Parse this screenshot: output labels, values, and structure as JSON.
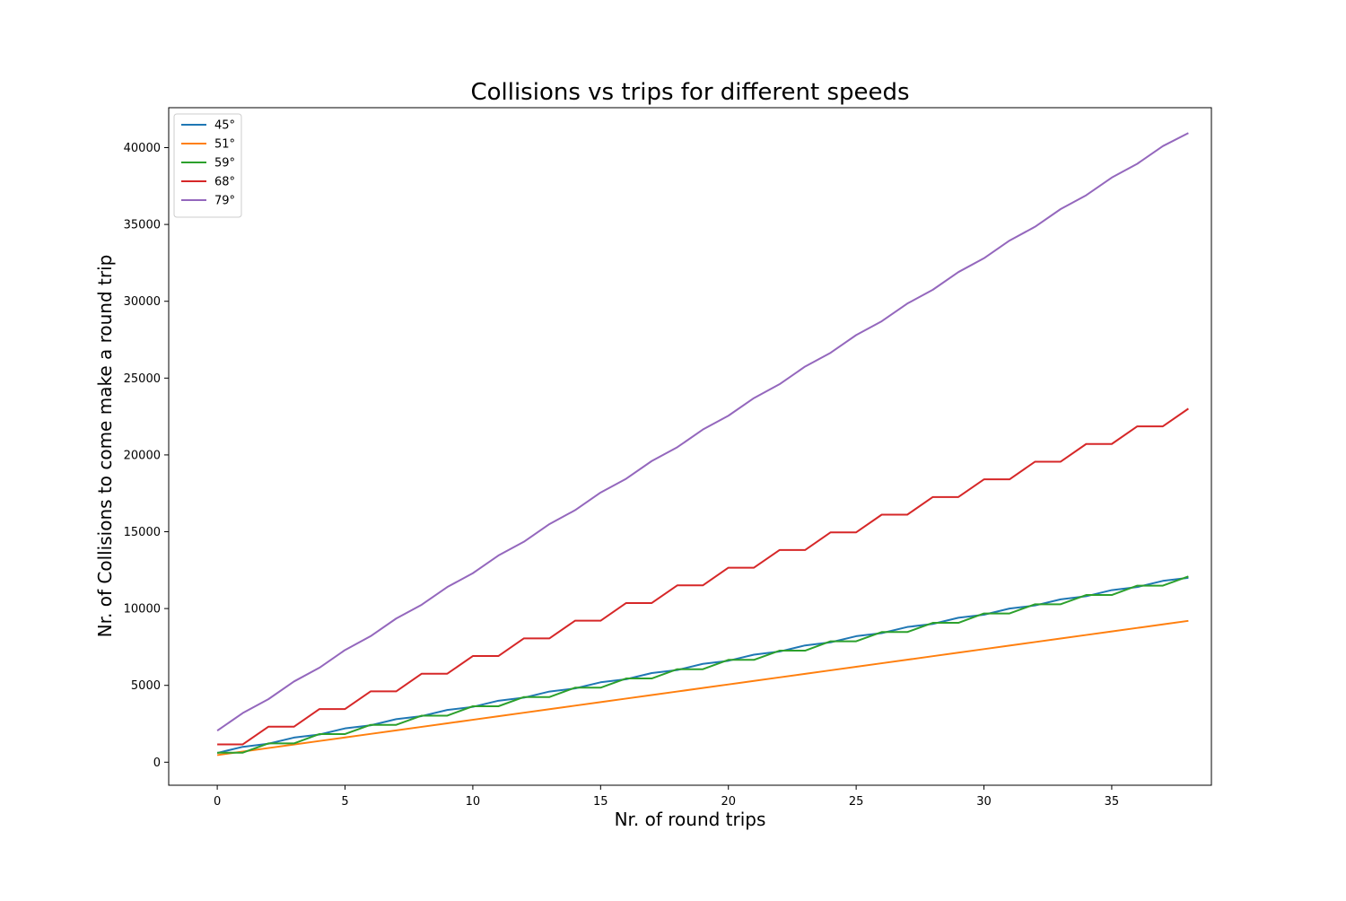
{
  "chart_data": {
    "type": "line",
    "title": "Collisions vs trips for different speeds",
    "xlabel": "Nr. of round trips",
    "ylabel": "Nr. of Collisions to come make a round trip",
    "xlim": [
      -1.9,
      38.9
    ],
    "ylim": [
      -1500,
      42600
    ],
    "xticks": [
      0,
      5,
      10,
      15,
      20,
      25,
      30,
      35
    ],
    "yticks": [
      0,
      5000,
      10000,
      15000,
      20000,
      25000,
      30000,
      35000,
      40000
    ],
    "grid": false,
    "legend_position": "top-left",
    "x": [
      0,
      1,
      2,
      3,
      4,
      5,
      6,
      7,
      8,
      9,
      10,
      11,
      12,
      13,
      14,
      15,
      16,
      17,
      18,
      19,
      20,
      21,
      22,
      23,
      24,
      25,
      26,
      27,
      28,
      29,
      30,
      31,
      32,
      33,
      34,
      35,
      36,
      37,
      38
    ],
    "series": [
      {
        "name": "45°",
        "color": "#1f77b4",
        "values": [
          600,
          1000,
          1200,
          1600,
          1800,
          2200,
          2400,
          2800,
          3000,
          3400,
          3600,
          4000,
          4200,
          4600,
          4800,
          5200,
          5400,
          5800,
          6000,
          6400,
          6600,
          7000,
          7200,
          7600,
          7800,
          8200,
          8400,
          8800,
          9000,
          9400,
          9600,
          10000,
          10200,
          10600,
          10800,
          11200,
          11400,
          11800,
          12000
        ]
      },
      {
        "name": "51°",
        "color": "#ff7f0e",
        "values": [
          460,
          690,
          920,
          1150,
          1380,
          1610,
          1840,
          2070,
          2300,
          2530,
          2760,
          2990,
          3220,
          3450,
          3680,
          3910,
          4140,
          4370,
          4600,
          4830,
          5060,
          5290,
          5520,
          5750,
          5980,
          6210,
          6440,
          6670,
          6900,
          7130,
          7360,
          7590,
          7820,
          8050,
          8280,
          8510,
          8740,
          8970,
          9200
        ]
      },
      {
        "name": "59°",
        "color": "#2ca02c",
        "values": [
          620,
          620,
          1220,
          1220,
          1830,
          1830,
          2430,
          2430,
          3030,
          3030,
          3640,
          3640,
          4240,
          4240,
          4850,
          4850,
          5450,
          5450,
          6050,
          6050,
          6660,
          6660,
          7260,
          7260,
          7870,
          7870,
          8470,
          8470,
          9070,
          9070,
          9680,
          9680,
          10280,
          10280,
          10880,
          10880,
          11490,
          11490,
          12090
        ]
      },
      {
        "name": "68°",
        "color": "#d62728",
        "values": [
          1160,
          1160,
          2310,
          2310,
          3460,
          3460,
          4610,
          4610,
          5760,
          5760,
          6910,
          6910,
          8060,
          8060,
          9210,
          9210,
          10360,
          10360,
          11510,
          11510,
          12660,
          12660,
          13810,
          13810,
          14960,
          14960,
          16110,
          16110,
          17260,
          17260,
          18410,
          18410,
          19560,
          19560,
          20710,
          20710,
          21860,
          21860,
          23010
        ]
      },
      {
        "name": "79°",
        "color": "#9467bd",
        "values": [
          2050,
          3200,
          4100,
          5250,
          6150,
          7300,
          8200,
          9350,
          10250,
          11400,
          12300,
          13450,
          14350,
          15500,
          16400,
          17550,
          18450,
          19600,
          20500,
          21650,
          22550,
          23700,
          24600,
          25750,
          26650,
          27800,
          28700,
          29850,
          30750,
          31900,
          32800,
          33950,
          34850,
          36000,
          36900,
          38050,
          38950,
          40100,
          40950
        ]
      }
    ]
  }
}
